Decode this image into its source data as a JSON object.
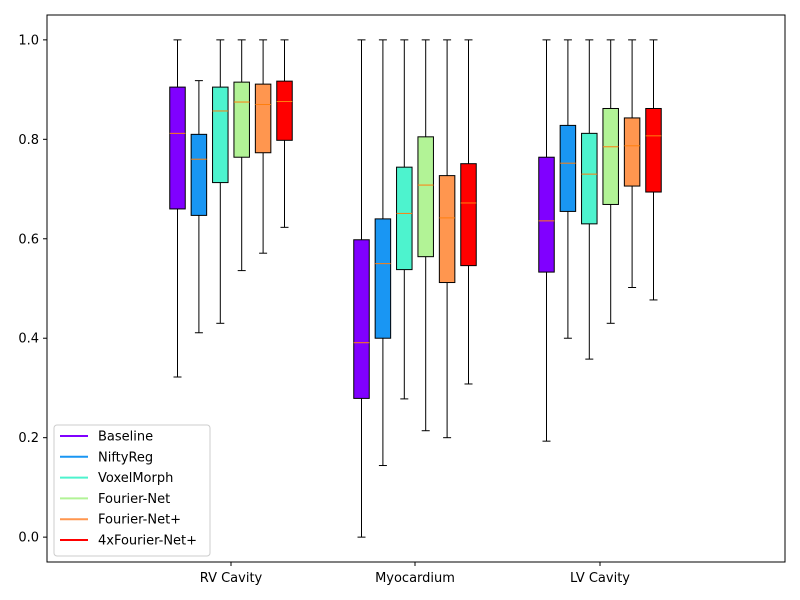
{
  "chart_data": {
    "type": "boxplot",
    "title": "",
    "xlabel": "",
    "ylabel": "",
    "ylim": [
      -0.05,
      1.05
    ],
    "y_ticks": [
      "0.0",
      "0.2",
      "0.4",
      "0.6",
      "0.8",
      "1.0"
    ],
    "y_tick_values": [
      0.0,
      0.2,
      0.4,
      0.6,
      0.8,
      1.0
    ],
    "categories": [
      "RV Cavity",
      "Myocardium",
      "LV Cavity"
    ],
    "legend_position": "lower-left",
    "grid": false,
    "median_color": "#ff7f0e",
    "series": [
      {
        "name": "Baseline",
        "color": "#8000ff",
        "boxes": [
          {
            "min": 0.322,
            "q1": 0.66,
            "median": 0.812,
            "q3": 0.905,
            "max": 1.0
          },
          {
            "min": 0.0,
            "q1": 0.279,
            "median": 0.391,
            "q3": 0.598,
            "max": 1.0
          },
          {
            "min": 0.193,
            "q1": 0.533,
            "median": 0.636,
            "q3": 0.764,
            "max": 1.0
          }
        ]
      },
      {
        "name": "NiftyReg",
        "color": "#1996f3",
        "boxes": [
          {
            "min": 0.411,
            "q1": 0.647,
            "median": 0.76,
            "q3": 0.81,
            "max": 0.918
          },
          {
            "min": 0.144,
            "q1": 0.4,
            "median": 0.55,
            "q3": 0.64,
            "max": 1.0
          },
          {
            "min": 0.4,
            "q1": 0.655,
            "median": 0.752,
            "q3": 0.828,
            "max": 1.0
          }
        ]
      },
      {
        "name": "VoxelMorph",
        "color": "#4df3ce",
        "boxes": [
          {
            "min": 0.43,
            "q1": 0.713,
            "median": 0.857,
            "q3": 0.905,
            "max": 1.0
          },
          {
            "min": 0.278,
            "q1": 0.538,
            "median": 0.651,
            "q3": 0.744,
            "max": 1.0
          },
          {
            "min": 0.358,
            "q1": 0.63,
            "median": 0.73,
            "q3": 0.812,
            "max": 1.0
          }
        ]
      },
      {
        "name": "Fourier-Net",
        "color": "#b2f396",
        "boxes": [
          {
            "min": 0.536,
            "q1": 0.764,
            "median": 0.875,
            "q3": 0.915,
            "max": 1.0
          },
          {
            "min": 0.214,
            "q1": 0.564,
            "median": 0.708,
            "q3": 0.805,
            "max": 1.0
          },
          {
            "min": 0.43,
            "q1": 0.669,
            "median": 0.785,
            "q3": 0.862,
            "max": 1.0
          }
        ]
      },
      {
        "name": "Fourier-Net+",
        "color": "#ff964f",
        "boxes": [
          {
            "min": 0.571,
            "q1": 0.773,
            "median": 0.87,
            "q3": 0.911,
            "max": 1.0
          },
          {
            "min": 0.2,
            "q1": 0.512,
            "median": 0.642,
            "q3": 0.727,
            "max": 1.0
          },
          {
            "min": 0.502,
            "q1": 0.706,
            "median": 0.787,
            "q3": 0.843,
            "max": 1.0
          }
        ]
      },
      {
        "name": "4xFourier-Net+",
        "color": "#ff0000",
        "boxes": [
          {
            "min": 0.623,
            "q1": 0.798,
            "median": 0.876,
            "q3": 0.917,
            "max": 1.0
          },
          {
            "min": 0.308,
            "q1": 0.546,
            "median": 0.672,
            "q3": 0.751,
            "max": 1.0
          },
          {
            "min": 0.477,
            "q1": 0.694,
            "median": 0.807,
            "q3": 0.862,
            "max": 1.0
          }
        ]
      }
    ]
  }
}
